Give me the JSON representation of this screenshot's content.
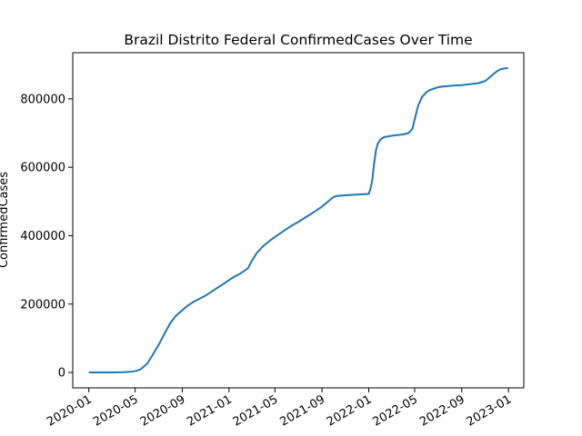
{
  "chart_data": {
    "type": "line",
    "title": "Brazil Distrito Federal ConfirmedCases Over Time",
    "xlabel": "",
    "ylabel": "ConfirmedCases",
    "x_tick_labels": [
      "2020-01",
      "2020-05",
      "2020-09",
      "2021-01",
      "2021-05",
      "2021-09",
      "2022-01",
      "2022-05",
      "2022-09",
      "2023-01"
    ],
    "x_tick_dates": [
      "2020-01-01",
      "2020-05-01",
      "2020-09-01",
      "2021-01-01",
      "2021-05-01",
      "2021-09-01",
      "2022-01-01",
      "2022-05-01",
      "2022-09-01",
      "2023-01-01"
    ],
    "y_ticks": [
      0,
      200000,
      400000,
      600000,
      800000
    ],
    "y_tick_labels": [
      "0",
      "200000",
      "400000",
      "600000",
      "800000"
    ],
    "xlim": [
      "2019-11-20",
      "2023-02-10"
    ],
    "ylim": [
      -45000,
      935000
    ],
    "grid": false,
    "legend": "none",
    "colors": {
      "line": "#1f77b4",
      "axes": "#000000",
      "background": "#ffffff"
    },
    "series": [
      {
        "x": [
          "2020-01-01",
          "2020-02-01",
          "2020-03-01",
          "2020-04-01",
          "2020-04-20",
          "2020-05-01",
          "2020-05-15",
          "2020-06-01",
          "2020-06-15",
          "2020-07-01",
          "2020-07-15",
          "2020-08-01",
          "2020-08-15",
          "2020-09-01",
          "2020-09-15",
          "2020-10-01",
          "2020-10-15",
          "2020-11-01",
          "2020-11-15",
          "2020-12-01",
          "2020-12-15",
          "2021-01-01",
          "2021-01-15",
          "2021-02-01",
          "2021-02-20",
          "2021-03-01",
          "2021-03-15",
          "2021-04-01",
          "2021-04-15",
          "2021-05-01",
          "2021-05-15",
          "2021-06-01",
          "2021-06-15",
          "2021-07-01",
          "2021-07-15",
          "2021-08-01",
          "2021-08-15",
          "2021-09-01",
          "2021-09-15",
          "2021-10-01",
          "2021-10-10",
          "2021-10-20",
          "2021-11-01",
          "2021-11-15",
          "2021-12-01",
          "2021-12-15",
          "2022-01-01",
          "2022-01-05",
          "2022-01-10",
          "2022-01-15",
          "2022-01-20",
          "2022-01-25",
          "2022-02-01",
          "2022-02-10",
          "2022-02-20",
          "2022-03-01",
          "2022-03-15",
          "2022-04-01",
          "2022-04-15",
          "2022-04-25",
          "2022-05-01",
          "2022-05-10",
          "2022-05-20",
          "2022-06-01",
          "2022-06-10",
          "2022-06-20",
          "2022-07-01",
          "2022-07-15",
          "2022-08-01",
          "2022-08-15",
          "2022-09-01",
          "2022-09-15",
          "2022-10-01",
          "2022-10-15",
          "2022-11-01",
          "2022-11-10",
          "2022-11-20",
          "2022-12-01",
          "2022-12-10",
          "2022-12-20",
          "2022-12-31"
        ],
        "y": [
          0,
          0,
          200,
          800,
          2000,
          4000,
          9000,
          25000,
          50000,
          80000,
          110000,
          145000,
          165000,
          182000,
          195000,
          207000,
          215000,
          225000,
          235000,
          247000,
          257000,
          270000,
          280000,
          290000,
          305000,
          325000,
          350000,
          370000,
          383000,
          396000,
          407000,
          420000,
          430000,
          440000,
          450000,
          462000,
          472000,
          485000,
          498000,
          513000,
          516000,
          517000,
          518000,
          519000,
          520000,
          521000,
          522000,
          535000,
          560000,
          610000,
          650000,
          670000,
          682000,
          688000,
          690000,
          692000,
          694000,
          696000,
          700000,
          712000,
          740000,
          780000,
          805000,
          820000,
          826000,
          830000,
          834000,
          836000,
          838000,
          839000,
          840000,
          842000,
          844000,
          846000,
          852000,
          860000,
          870000,
          880000,
          886000,
          889000,
          890000
        ]
      }
    ]
  }
}
